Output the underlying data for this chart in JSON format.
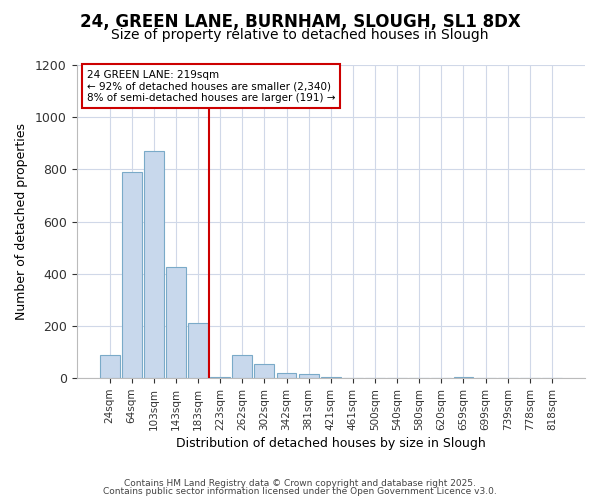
{
  "title1": "24, GREEN LANE, BURNHAM, SLOUGH, SL1 8DX",
  "title2": "Size of property relative to detached houses in Slough",
  "xlabel": "Distribution of detached houses by size in Slough",
  "ylabel": "Number of detached properties",
  "categories": [
    "24sqm",
    "64sqm",
    "103sqm",
    "143sqm",
    "183sqm",
    "223sqm",
    "262sqm",
    "302sqm",
    "342sqm",
    "381sqm",
    "421sqm",
    "461sqm",
    "500sqm",
    "540sqm",
    "580sqm",
    "620sqm",
    "659sqm",
    "699sqm",
    "739sqm",
    "778sqm",
    "818sqm"
  ],
  "values": [
    90,
    790,
    870,
    425,
    210,
    5,
    90,
    55,
    20,
    15,
    5,
    0,
    0,
    0,
    0,
    0,
    5,
    0,
    0,
    0,
    0
  ],
  "bar_color": "#c8d8ec",
  "bar_edge_color": "#7aaac8",
  "red_line_index": 5,
  "annotation_title": "24 GREEN LANE: 219sqm",
  "annotation_line1": "← 92% of detached houses are smaller (2,340)",
  "annotation_line2": "8% of semi-detached houses are larger (191) →",
  "ylim": [
    0,
    1200
  ],
  "yticks": [
    0,
    200,
    400,
    600,
    800,
    1000,
    1200
  ],
  "bg_color": "#ffffff",
  "plot_bg_color": "#ffffff",
  "grid_color": "#d0d8e8",
  "footer1": "Contains HM Land Registry data © Crown copyright and database right 2025.",
  "footer2": "Contains public sector information licensed under the Open Government Licence v3.0.",
  "title_fontsize": 12,
  "subtitle_fontsize": 10,
  "annotation_box_color": "#ffffff",
  "annotation_box_edge": "#cc0000",
  "red_line_color": "#cc0000"
}
